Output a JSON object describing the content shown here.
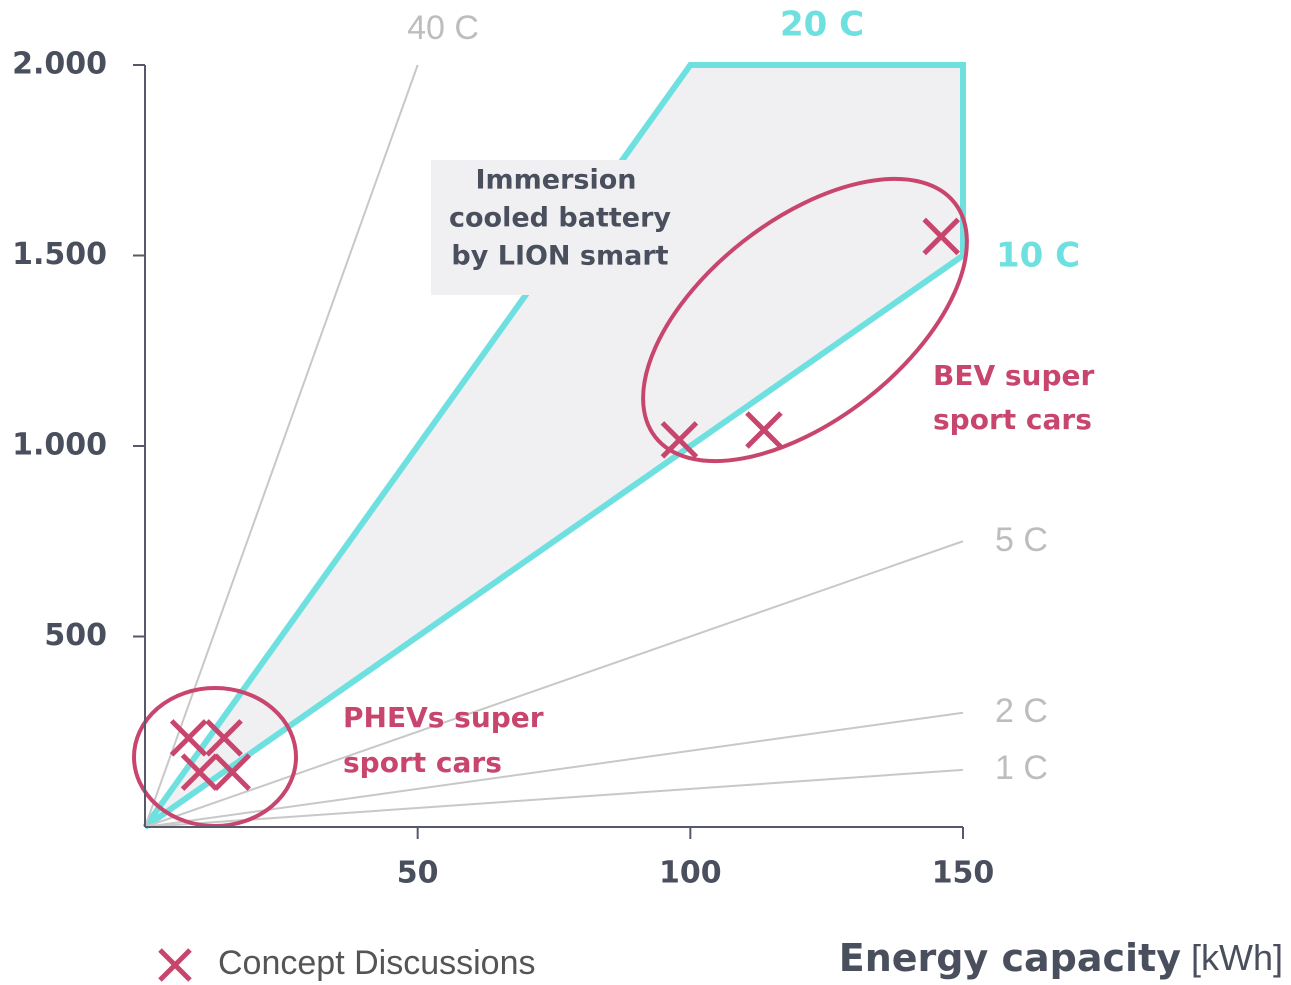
{
  "chart_data": {
    "type": "scatter",
    "xlabel": "Energy capacity",
    "xunit": "[kWh]",
    "xlim": [
      0,
      150
    ],
    "ylim": [
      0,
      2000
    ],
    "xticks": [
      50,
      100,
      150
    ],
    "yticks": [
      500,
      {
        "value": 1000,
        "label": "1.000"
      },
      {
        "value": 1500,
        "label": "1.500"
      },
      {
        "value": 2000,
        "label": "2.000"
      }
    ],
    "series": [
      {
        "name": "Concept Discussions",
        "color": "#c8466e",
        "x": [
          146,
          98,
          113.5,
          8,
          14.5,
          10,
          16
        ],
        "values": [
          1550,
          1016,
          1042,
          234,
          234,
          144,
          144
        ]
      }
    ],
    "region": {
      "label": [
        "Immersion",
        "cooled battery",
        "by LION smart"
      ],
      "color": "#6ee0e0",
      "x": [
        0,
        100,
        150,
        150
      ],
      "values": [
        0,
        2000,
        2000,
        1500
      ]
    },
    "region_labels": [
      "20 C",
      "10 C"
    ],
    "rate_lines": [
      {
        "label": "40 C",
        "x": [
          0,
          50
        ],
        "values": [
          0,
          2000
        ]
      },
      {
        "label": "5 C",
        "x": [
          0,
          150
        ],
        "values": [
          0,
          750
        ]
      },
      {
        "label": "2 C",
        "x": [
          0,
          150
        ],
        "values": [
          0,
          300
        ]
      },
      {
        "label": "1 C",
        "x": [
          0,
          150
        ],
        "values": [
          0,
          150
        ]
      }
    ],
    "annotations": [
      {
        "text": [
          "BEV super",
          "sport cars"
        ]
      },
      {
        "text": [
          "PHEVs super",
          "sport cars"
        ]
      }
    ]
  }
}
